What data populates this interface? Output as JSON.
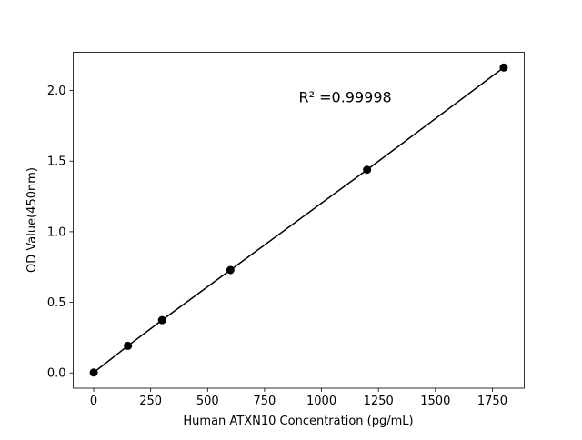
{
  "chart_data": {
    "type": "line",
    "title": "",
    "xlabel": "Human ATXN10 Concentration (pg/mL)",
    "ylabel": "OD Value(450nm)",
    "x": [
      0,
      150,
      300,
      600,
      1200,
      1800
    ],
    "series": [
      {
        "values": [
          0.003,
          0.192,
          0.374,
          0.729,
          1.439,
          2.163
        ],
        "color": "#000000",
        "marker": "circle"
      }
    ],
    "xlim": [
      -90,
      1890
    ],
    "ylim": [
      -0.108,
      2.271
    ],
    "xticks": [
      "0",
      "250",
      "500",
      "750",
      "1000",
      "1250",
      "1500",
      "1750"
    ],
    "yticks": [
      "0.0",
      "0.5",
      "1.0",
      "1.5",
      "2.0"
    ],
    "annotation": {
      "text": "R² =0.99998",
      "x": 900,
      "y": 1.95
    },
    "grid": false,
    "legend": "none"
  }
}
